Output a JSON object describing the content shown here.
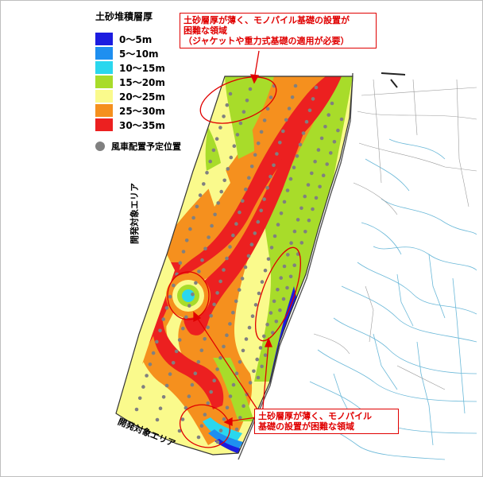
{
  "legend": {
    "title": "土砂堆積層厚",
    "items": [
      {
        "label": "0～5m",
        "color": "#1c1ce0"
      },
      {
        "label": "5～10m",
        "color": "#1e8ff0"
      },
      {
        "label": "10～15m",
        "color": "#2ad7ee"
      },
      {
        "label": "15～20m",
        "color": "#a8dc2a"
      },
      {
        "label": "20～25m",
        "color": "#fafa8c"
      },
      {
        "label": "25～30m",
        "color": "#f5901e"
      },
      {
        "label": "30～35m",
        "color": "#ec2020"
      }
    ],
    "turbine_label": "風車配置予定位置",
    "turbine_color": "#808080"
  },
  "callouts": {
    "top": {
      "line1": "土砂層厚が薄く、モノパイル基礎の設置が",
      "line2": "困難な領域",
      "line3": "（ジャケットや重力式基礎の適用が必要）"
    },
    "bottom": {
      "line1": "土砂層厚が薄く、モノパイル",
      "line2": "基礎の設置が困難な領域"
    },
    "color": "#e00000"
  },
  "area_labels": {
    "left": "開発対象エリア",
    "bottom": "開発対象エリア"
  }
}
